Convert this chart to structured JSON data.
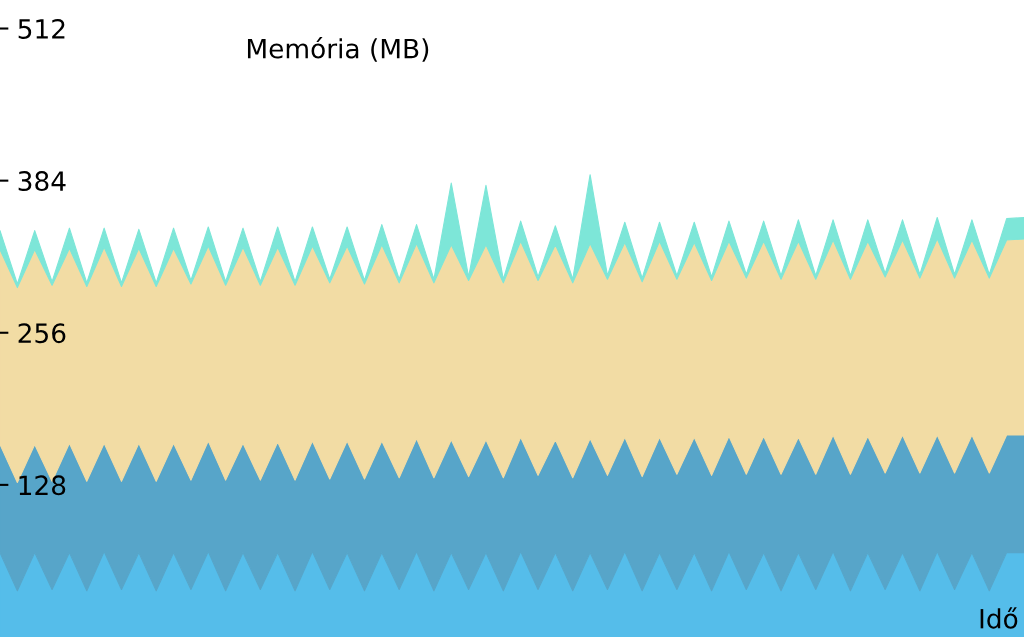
{
  "chart_data": {
    "type": "area",
    "stacked": true,
    "ylabel": "Memória (MB)",
    "xlabel": "Idő",
    "categories": [
      null,
      null,
      null,
      null,
      null,
      null,
      null,
      null,
      null,
      null,
      null,
      null,
      null,
      null,
      null,
      null,
      null,
      null,
      null,
      null,
      null,
      null,
      null,
      null,
      null,
      null,
      null,
      null,
      null,
      null,
      null,
      null,
      null,
      null,
      null,
      null,
      null,
      null,
      null,
      null,
      null,
      null,
      null,
      null,
      null,
      null,
      null,
      null,
      null,
      null,
      null,
      null,
      null,
      null,
      null,
      null,
      null,
      null,
      null,
      null
    ],
    "ylim": [
      0,
      536
    ],
    "yticks": [
      128,
      256,
      384,
      512
    ],
    "tick_labels": "y",
    "series": [
      {
        "color": "#55bdea",
        "values": [
          71,
          39,
          71,
          40,
          71,
          39,
          72,
          40,
          71,
          39,
          71,
          40,
          72,
          39,
          71,
          40,
          71,
          39,
          72,
          40,
          71,
          39,
          71,
          40,
          72,
          39,
          71,
          40,
          71,
          39,
          72,
          40,
          71,
          39,
          71,
          40,
          72,
          39,
          71,
          40,
          71,
          39,
          72,
          40,
          71,
          39,
          71,
          40,
          72,
          39,
          71,
          40,
          71,
          39,
          72,
          40,
          71,
          39,
          71,
          71
        ]
      },
      {
        "color": "#57a5c9",
        "values": [
          91,
          91,
          91,
          91,
          92,
          92,
          91,
          91,
          92,
          92,
          92,
          92,
          93,
          93,
          92,
          92,
          93,
          93,
          93,
          93,
          94,
          94,
          94,
          94,
          95,
          95,
          95,
          95,
          95,
          95,
          96,
          96,
          95,
          95,
          96,
          96,
          96,
          96,
          97,
          97,
          97,
          97,
          97,
          97,
          98,
          98,
          97,
          97,
          98,
          98,
          98,
          98,
          99,
          99,
          98,
          98,
          99,
          99,
          99,
          99
        ]
      },
      {
        "color": "#f2dca4",
        "values": [
          164,
          164,
          164,
          165,
          164,
          164,
          165,
          164,
          164,
          164,
          164,
          165,
          164,
          164,
          165,
          164,
          164,
          164,
          164,
          165,
          164,
          164,
          165,
          164,
          164,
          164,
          164,
          165,
          164,
          164,
          165,
          164,
          164,
          164,
          164,
          165,
          164,
          164,
          165,
          164,
          164,
          164,
          164,
          165,
          164,
          164,
          165,
          164,
          164,
          164,
          164,
          165,
          164,
          164,
          165,
          164,
          164,
          164,
          164,
          165
        ]
      },
      {
        "color": "#7de6d8",
        "values": [
          16,
          3,
          16,
          3,
          17,
          3,
          16,
          3,
          16,
          3,
          17,
          3,
          16,
          3,
          16,
          3,
          17,
          3,
          16,
          3,
          16,
          3,
          17,
          3,
          16,
          3,
          52,
          3,
          50,
          3,
          17,
          3,
          16,
          3,
          58,
          3,
          17,
          3,
          16,
          3,
          17,
          3,
          17,
          3,
          17,
          3,
          18,
          3,
          17,
          3,
          18,
          3,
          17,
          3,
          18,
          3,
          17,
          3,
          18,
          18
        ]
      }
    ]
  }
}
